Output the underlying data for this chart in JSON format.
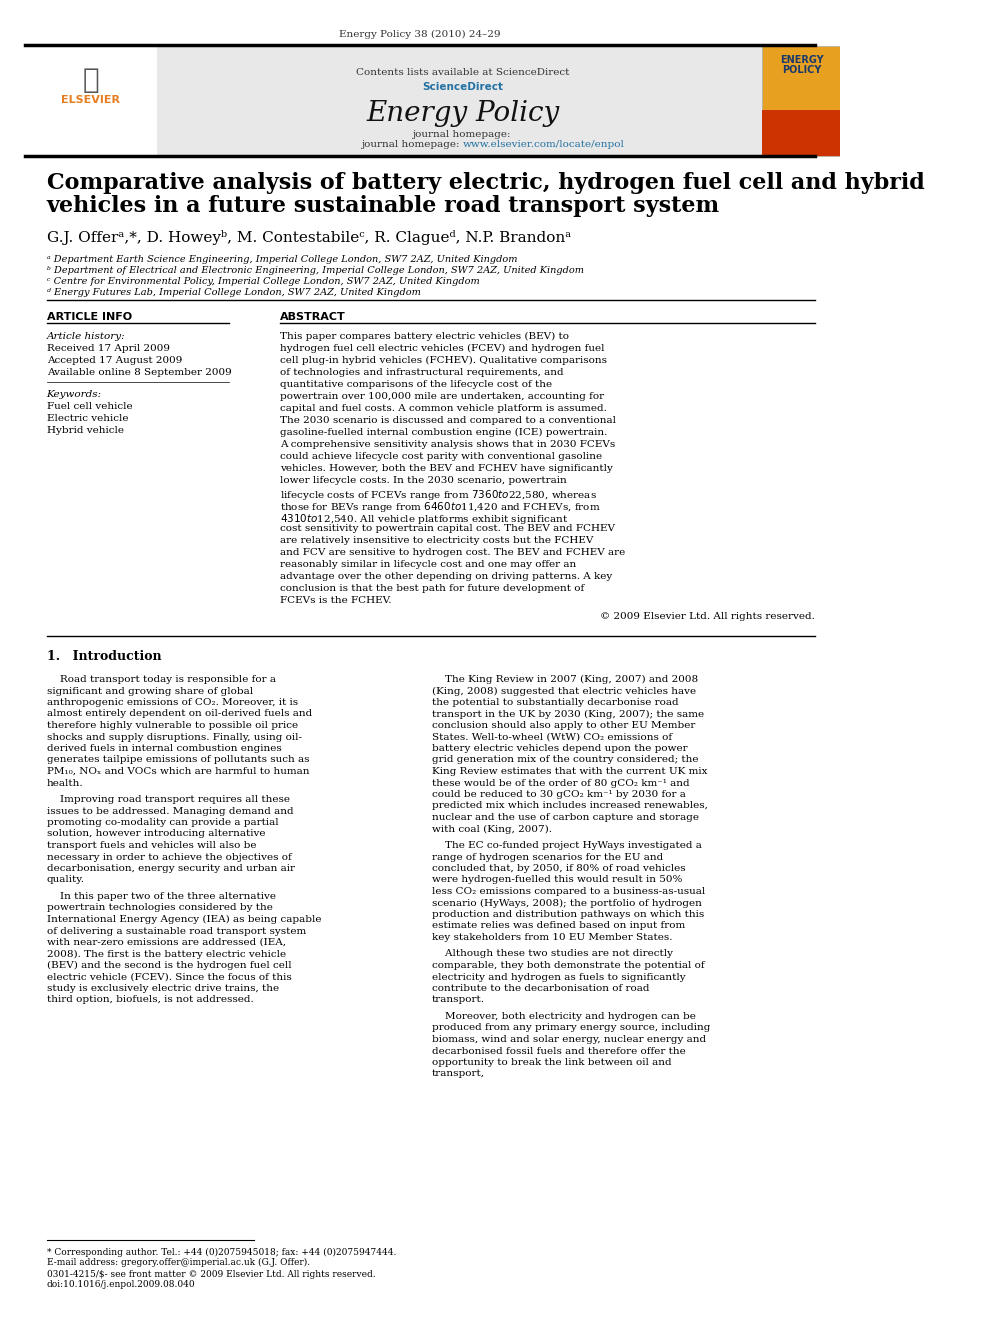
{
  "journal_info": "Energy Policy 38 (2010) 24–29",
  "contents_line": "Contents lists available at ScienceDirect",
  "journal_name": "Energy Policy",
  "journal_homepage": "journal homepage: www.elsevier.com/locate/enpol",
  "paper_title_line1": "Comparative analysis of battery electric, hydrogen fuel cell and hybrid",
  "paper_title_line2": "vehicles in a future sustainable road transport system",
  "authors": "G.J. Offerᵃ,*, D. Howeyᵇ, M. Contestabileᶜ, R. Clagueᵈ, N.P. Brandonᵃ",
  "affil_a": "ᵃ Department Earth Science Engineering, Imperial College London, SW7 2AZ, United Kingdom",
  "affil_b": "ᵇ Department of Electrical and Electronic Engineering, Imperial College London, SW7 2AZ, United Kingdom",
  "affil_c": "ᶜ Centre for Environmental Policy, Imperial College London, SW7 2AZ, United Kingdom",
  "affil_d": "ᵈ Energy Futures Lab, Imperial College London, SW7 2AZ, United Kingdom",
  "article_info_header": "ARTICLE INFO",
  "abstract_header": "ABSTRACT",
  "article_history_label": "Article history:",
  "received": "Received 17 April 2009",
  "accepted": "Accepted 17 August 2009",
  "available": "Available online 8 September 2009",
  "keywords_label": "Keywords:",
  "kw1": "Fuel cell vehicle",
  "kw2": "Electric vehicle",
  "kw3": "Hybrid vehicle",
  "abstract_text": "This paper compares battery electric vehicles (BEV) to hydrogen fuel cell electric vehicles (FCEV) and hydrogen fuel cell plug-in hybrid vehicles (FCHEV). Qualitative comparisons of technologies and infrastructural requirements, and quantitative comparisons of the lifecycle cost of the powertrain over 100,000 mile are undertaken, accounting for capital and fuel costs. A common vehicle platform is assumed. The 2030 scenario is discussed and compared to a conventional gasoline-fuelled internal combustion engine (ICE) powertrain. A comprehensive sensitivity analysis shows that in 2030 FCEVs could achieve lifecycle cost parity with conventional gasoline vehicles. However, both the BEV and FCHEV have significantly lower lifecycle costs. In the 2030 scenario, powertrain lifecycle costs of FCEVs range from $7360 to $22,580, whereas those for BEVs range from $6460 to $11,420 and FCHEVs, from $4310 to $12,540. All vehicle platforms exhibit significant cost sensitivity to powertrain capital cost. The BEV and FCHEV are relatively insensitive to electricity costs but the FCHEV and FCV are sensitive to hydrogen cost. The BEV and FCHEV are reasonably similar in lifecycle cost and one may offer an advantage over the other depending on driving patterns. A key conclusion is that the best path for future development of FCEVs is the FCHEV.",
  "copyright": "© 2009 Elsevier Ltd. All rights reserved.",
  "section1_title": "1. Introduction",
  "intro_col1_para1": "Road transport today is responsible for a significant and growing share of global anthropogenic emissions of CO₂. Moreover, it is almost entirely dependent on oil-derived fuels and therefore highly vulnerable to possible oil price shocks and supply disruptions. Finally, using oil-derived fuels in internal combustion engines generates tailpipe emissions of pollutants such as PM₁₀, NOₓ and VOCs which are harmful to human health.",
  "intro_col1_para2": "Improving road transport requires all these issues to be addressed. Managing demand and promoting co-modality can provide a partial solution, however introducing alternative transport fuels and vehicles will also be necessary in order to achieve the objectives of decarbonisation, energy security and urban air quality.",
  "intro_col1_para3": "In this paper two of the three alternative powertrain technologies considered by the International Energy Agency (IEA) as being capable of delivering a sustainable road transport system with near-zero emissions are addressed (IEA, 2008). The first is the battery electric vehicle (BEV) and the second is the hydrogen fuel cell electric vehicle (FCEV). Since the focus of this study is exclusively electric drive trains, the third option, biofuels, is not addressed.",
  "intro_col2_para1": "The King Review in 2007 (King, 2007) and 2008 (King, 2008) suggested that electric vehicles have the potential to substantially decarbonise road transport in the UK by 2030 (King, 2007); the same conclusion should also apply to other EU Member States. Well-to-wheel (WtW) CO₂ emissions of battery electric vehicles depend upon the power grid generation mix of the country considered; the King Review estimates that with the current UK mix these would be of the order of 80 gCO₂ km⁻¹ and could be reduced to 30 gCO₂ km⁻¹ by 2030 for a predicted mix which includes increased renewables, nuclear and the use of carbon capture and storage with coal (King, 2007).",
  "intro_col2_para2": "The EC co-funded project HyWays investigated a range of hydrogen scenarios for the EU and concluded that, by 2050, if 80% of road vehicles were hydrogen-fuelled this would result in 50% less CO₂ emissions compared to a business-as-usual scenario (HyWays, 2008); the portfolio of hydrogen production and distribution pathways on which this estimate relies was defined based on input from key stakeholders from 10 EU Member States.",
  "intro_col2_para3": "Although these two studies are not directly comparable, they both demonstrate the potential of electricity and hydrogen as fuels to significantly contribute to the decarbonisation of road transport.",
  "intro_col2_para4": "Moreover, both electricity and hydrogen can be produced from any primary energy source, including biomass, wind and solar energy, nuclear energy and decarbonised fossil fuels and therefore offer the opportunity to break the link between oil and transport,",
  "footnote1": "* Corresponding author. Tel.: +44 (0)2075945018; fax: +44 (0)2075947444.",
  "footnote2": "E-mail address: gregory.offer@imperial.ac.uk (G.J. Offer).",
  "footnote3": "0301-4215/$- see front matter © 2009 Elsevier Ltd. All rights reserved.",
  "footnote4": "doi:10.1016/j.enpol.2009.08.040",
  "bg_color": "#ffffff",
  "header_bg": "#e8e8e8",
  "blue_color": "#1a5276",
  "link_color": "#2471a3",
  "elsevier_orange": "#e67e22",
  "title_color": "#000000",
  "text_color": "#000000"
}
